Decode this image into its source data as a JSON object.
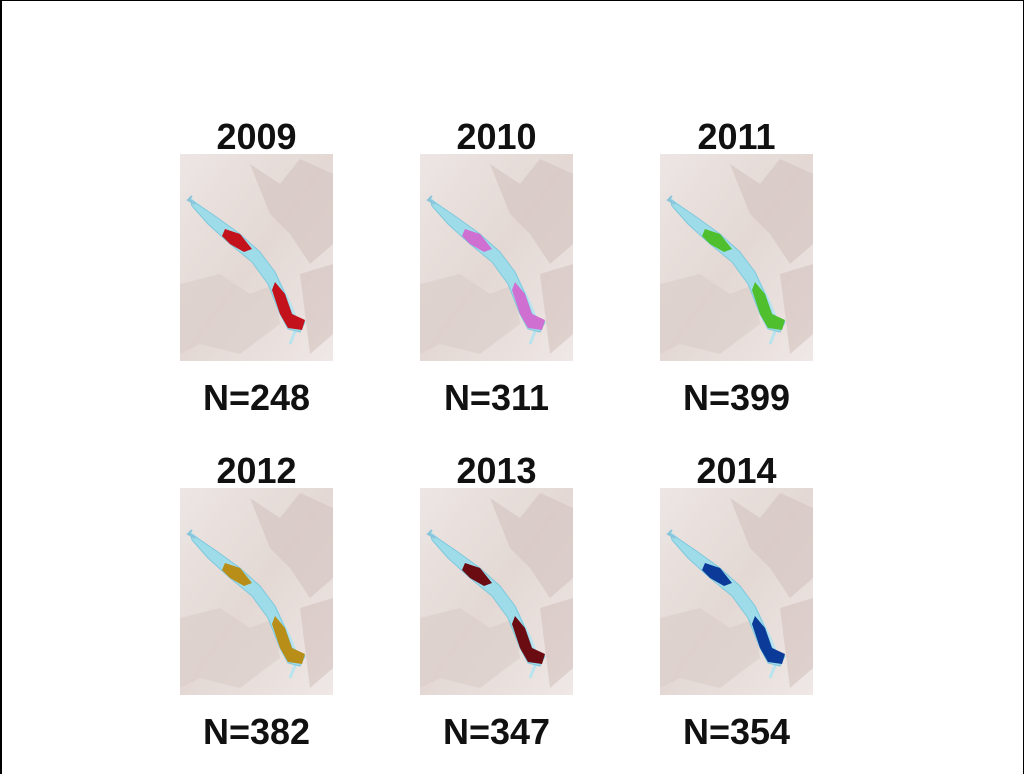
{
  "panels": [
    {
      "year": "2009",
      "label": "N=248",
      "color": "#c3121c"
    },
    {
      "year": "2010",
      "label": "N=311",
      "color": "#cf6fd2"
    },
    {
      "year": "2011",
      "label": "N=399",
      "color": "#4fbf2e"
    },
    {
      "year": "2012",
      "label": "N=382",
      "color": "#b88e18"
    },
    {
      "year": "2013",
      "label": "N=347",
      "color": "#6b0b12"
    },
    {
      "year": "2014",
      "label": "N=354",
      "color": "#0b3a98"
    }
  ]
}
